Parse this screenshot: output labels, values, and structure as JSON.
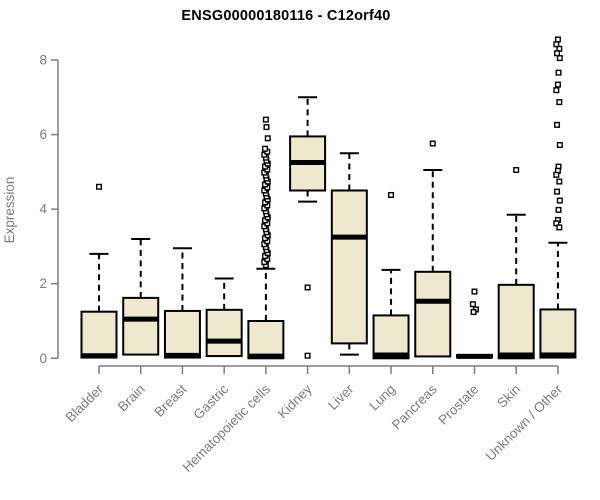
{
  "chart_data": {
    "type": "boxplot",
    "title": "ENSG00000180116 - C12orf40",
    "ylabel": "Expression",
    "xlabel": "",
    "ylim": [
      0,
      8
    ],
    "yticks": [
      0,
      2,
      4,
      6,
      8
    ],
    "grid": false,
    "legend": null,
    "colors": {
      "box_fill": "#ede8ce",
      "box_border": "#000000",
      "median_line": "#000000",
      "whisker": "#000000",
      "outlier": "#000000",
      "axis": "#7d7d7d",
      "axis_text": "#7d7d7d",
      "title_text": "#000000",
      "background": "#ffffff"
    },
    "categories": [
      "Bladder",
      "Brain",
      "Breast",
      "Gastric",
      "Hematopoietic cells",
      "Kidney",
      "Liver",
      "Lung",
      "Pancreas",
      "Prostate",
      "Skin",
      "Unknown / Other"
    ],
    "series": [
      {
        "name": "Bladder",
        "whisker_low": 0.02,
        "q1": 0.02,
        "median": 0.07,
        "q3": 1.25,
        "whisker_high": 2.8,
        "outliers": [
          4.6
        ]
      },
      {
        "name": "Brain",
        "whisker_low": 0.1,
        "q1": 0.1,
        "median": 1.05,
        "q3": 1.62,
        "whisker_high": 3.2,
        "outliers": []
      },
      {
        "name": "Breast",
        "whisker_low": 0.02,
        "q1": 0.02,
        "median": 0.08,
        "q3": 1.27,
        "whisker_high": 2.95,
        "outliers": []
      },
      {
        "name": "Gastric",
        "whisker_low": 0.06,
        "q1": 0.06,
        "median": 0.46,
        "q3": 1.3,
        "whisker_high": 2.14,
        "outliers": []
      },
      {
        "name": "Hematopoietic cells",
        "whisker_low": 0.0,
        "q1": 0.0,
        "median": 0.06,
        "q3": 1.0,
        "whisker_high": 2.4,
        "outliers": [
          2.5,
          2.58,
          2.66,
          2.74,
          2.82,
          2.9,
          2.98,
          3.06,
          3.14,
          3.22,
          3.3,
          3.38,
          3.46,
          3.54,
          3.62,
          3.7,
          3.78,
          3.86,
          3.94,
          4.02,
          4.1,
          4.18,
          4.26,
          4.34,
          4.42,
          4.5,
          4.58,
          4.66,
          4.74,
          4.82,
          4.9,
          4.98,
          5.06,
          5.14,
          5.22,
          5.3,
          5.38,
          5.46,
          5.54,
          5.62,
          5.9,
          6.2,
          6.4
        ]
      },
      {
        "name": "Kidney",
        "whisker_low": 4.2,
        "q1": 4.5,
        "median": 5.25,
        "q3": 5.95,
        "whisker_high": 7.0,
        "outliers": [
          1.9,
          0.07
        ]
      },
      {
        "name": "Liver",
        "whisker_low": 0.1,
        "q1": 0.4,
        "median": 3.25,
        "q3": 4.5,
        "whisker_high": 5.5,
        "outliers": []
      },
      {
        "name": "Lung",
        "whisker_low": 0.0,
        "q1": 0.0,
        "median": 0.09,
        "q3": 1.15,
        "whisker_high": 2.37,
        "outliers": [
          4.38
        ]
      },
      {
        "name": "Pancreas",
        "whisker_low": 0.05,
        "q1": 0.05,
        "median": 1.53,
        "q3": 2.32,
        "whisker_high": 5.05,
        "outliers": [
          5.76
        ]
      },
      {
        "name": "Prostate",
        "whisker_low": 0.02,
        "q1": 0.02,
        "median": 0.05,
        "q3": 0.09,
        "whisker_high": 0.09,
        "outliers": [
          1.79,
          1.45,
          1.31,
          1.24
        ]
      },
      {
        "name": "Skin",
        "whisker_low": 0.0,
        "q1": 0.0,
        "median": 0.09,
        "q3": 1.97,
        "whisker_high": 3.85,
        "outliers": [
          5.05
        ]
      },
      {
        "name": "Unknown / Other",
        "whisker_low": 0.02,
        "q1": 0.02,
        "median": 0.09,
        "q3": 1.31,
        "whisker_high": 3.1,
        "outliers": [
          8.55,
          8.42,
          8.3,
          8.18,
          8.05,
          7.66,
          7.34,
          7.19,
          6.87,
          6.26,
          5.72,
          5.14,
          5.03,
          4.92,
          4.74,
          4.47,
          4.23,
          3.98,
          3.71,
          3.62,
          3.51
        ]
      }
    ]
  }
}
